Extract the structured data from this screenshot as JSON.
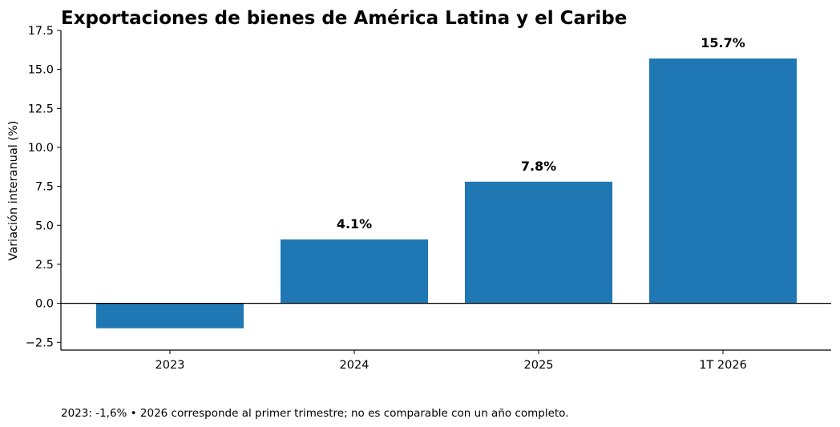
{
  "chart_data": {
    "type": "bar",
    "title": "Exportaciones de bienes de América Latina y el Caribe",
    "xlabel": "",
    "ylabel": "Variación interanual (%)",
    "categories": [
      "2023",
      "2024",
      "2025",
      "1T 2026"
    ],
    "values": [
      -1.6,
      4.1,
      7.8,
      15.7
    ],
    "data_labels": [
      "",
      "4.1%",
      "7.8%",
      "15.7%"
    ],
    "ylim": [
      -3.0,
      17.5
    ],
    "yticks": [
      -2.5,
      0.0,
      2.5,
      5.0,
      7.5,
      10.0,
      12.5,
      15.0,
      17.5
    ],
    "ytick_labels": [
      "−2.5",
      "0.0",
      "2.5",
      "5.0",
      "7.5",
      "10.0",
      "12.5",
      "15.0",
      "17.5"
    ],
    "bar_color": "#1f77b4",
    "zero_line": true,
    "grid": false,
    "footnote": "2023: -1,6%  •  2026 corresponde al primer trimestre; no es comparable con un año completo."
  }
}
